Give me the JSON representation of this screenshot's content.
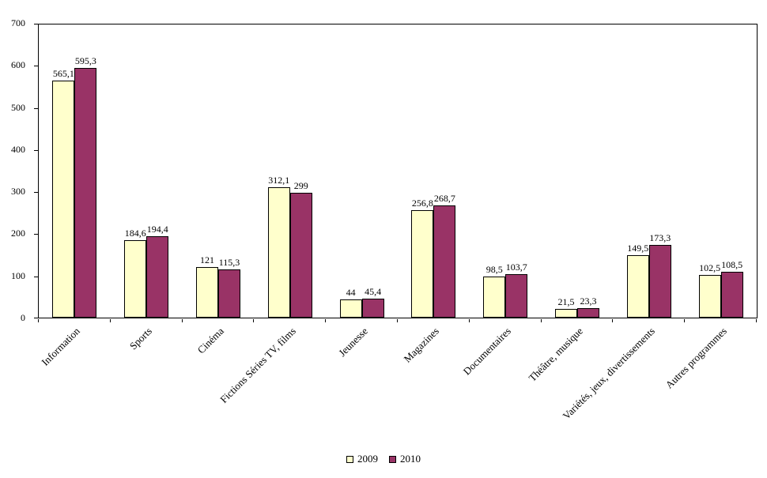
{
  "chart_data": {
    "type": "bar",
    "title": "",
    "xlabel": "",
    "ylabel": "",
    "ylim": [
      0,
      700
    ],
    "ytick_step": 100,
    "grid": false,
    "legend_position": "bottom",
    "categories": [
      "Information",
      "Sports",
      "Cinéma",
      "Fictions Séries TV, films",
      "Jeunesse",
      "Magazines",
      "Documentaires",
      "Théâtre, musique",
      "Variétés, jeux, divertissements",
      "Autres programmes"
    ],
    "series": [
      {
        "name": "2009",
        "color": "#FFFFCC",
        "values": [
          565.1,
          184.6,
          121,
          312.1,
          44,
          256.8,
          98.5,
          21.5,
          149.5,
          102.5
        ],
        "labels": [
          "565,1",
          "184,6",
          "121",
          "312,1",
          "44",
          "256,8",
          "98,5",
          "21,5",
          "149,5",
          "102,5"
        ]
      },
      {
        "name": "2010",
        "color": "#993366",
        "values": [
          595.3,
          194.4,
          115.3,
          299,
          45.4,
          268.7,
          103.7,
          23.3,
          173.3,
          108.5
        ],
        "labels": [
          "595,3",
          "194,4",
          "115,3",
          "299",
          "45,4",
          "268,7",
          "103,7",
          "23,3",
          "173,3",
          "108,5"
        ]
      }
    ],
    "colors": {
      "bar_border": "#000000",
      "axis": "#000000",
      "background": "#FFFFFF"
    }
  }
}
